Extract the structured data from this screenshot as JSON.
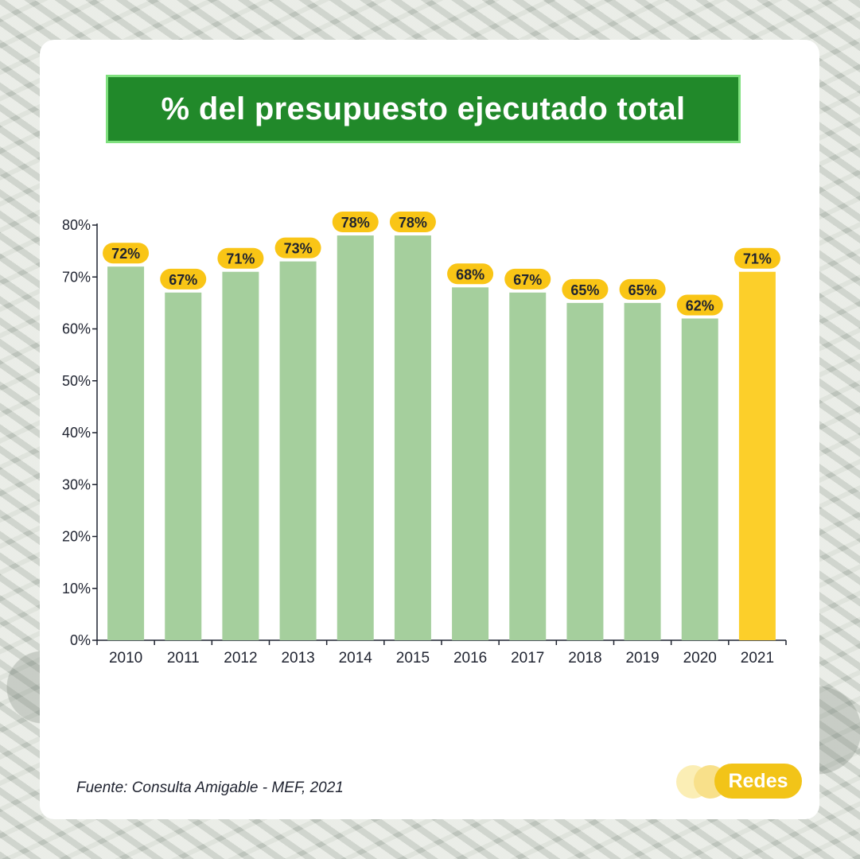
{
  "title": "% del presupuesto ejecutado total",
  "source": "Fuente: Consulta Amigable - MEF, 2021",
  "logo": {
    "text": "Redes"
  },
  "colors": {
    "bar": "#a5cf9d",
    "highlight": "#fccf2a",
    "label_pill": "#f9c516",
    "title_bg": "#21892a",
    "title_border": "#7fe07e"
  },
  "chart_data": {
    "type": "bar",
    "title": "% del presupuesto ejecutado total",
    "categories": [
      "2010",
      "2011",
      "2012",
      "2013",
      "2014",
      "2015",
      "2016",
      "2017",
      "2018",
      "2019",
      "2020",
      "2021"
    ],
    "values": [
      72,
      67,
      71,
      73,
      78,
      78,
      68,
      67,
      65,
      65,
      62,
      71
    ],
    "value_labels": [
      "72%",
      "67%",
      "71%",
      "73%",
      "78%",
      "78%",
      "68%",
      "67%",
      "65%",
      "65%",
      "62%",
      "71%"
    ],
    "highlight_category": "2021",
    "ylim": [
      0,
      80
    ],
    "yticks": [
      "0%",
      "10%",
      "20%",
      "30%",
      "40%",
      "50%",
      "60%",
      "70%",
      "80%"
    ],
    "xlabel": "",
    "ylabel": "",
    "grid": false
  }
}
